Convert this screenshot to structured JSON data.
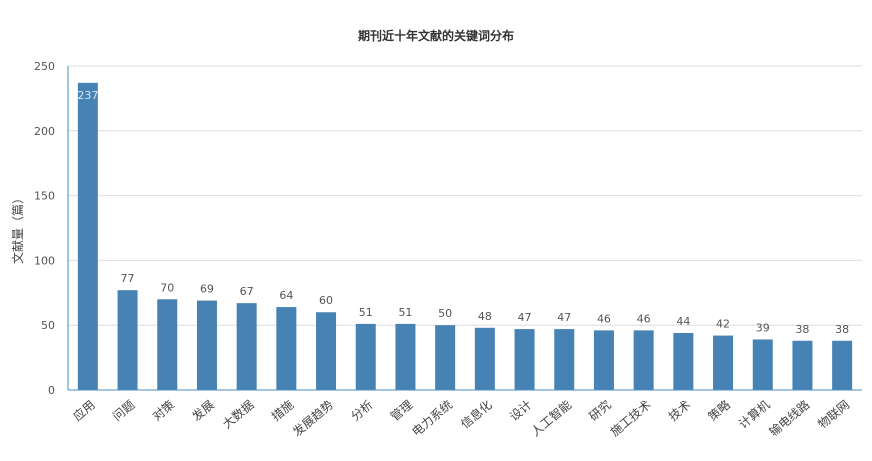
{
  "chart_data": {
    "type": "bar",
    "title": "期刊近十年文献的关键词分布",
    "xlabel": "",
    "ylabel": "文献量（篇）",
    "ylim": [
      0,
      250
    ],
    "yticks": [
      0,
      50,
      100,
      150,
      200,
      250
    ],
    "grid": true,
    "legend": "none",
    "bar_color": "#4682b4",
    "categories": [
      "应用",
      "问题",
      "对策",
      "发展",
      "大数据",
      "措施",
      "发展趋势",
      "分析",
      "管理",
      "电力系统",
      "信息化",
      "设计",
      "人工智能",
      "研究",
      "施工技术",
      "技术",
      "策略",
      "计算机",
      "输电线路",
      "物联网"
    ],
    "values": [
      237,
      77,
      70,
      69,
      67,
      64,
      60,
      51,
      51,
      50,
      48,
      47,
      47,
      46,
      46,
      44,
      42,
      39,
      38,
      38
    ]
  }
}
